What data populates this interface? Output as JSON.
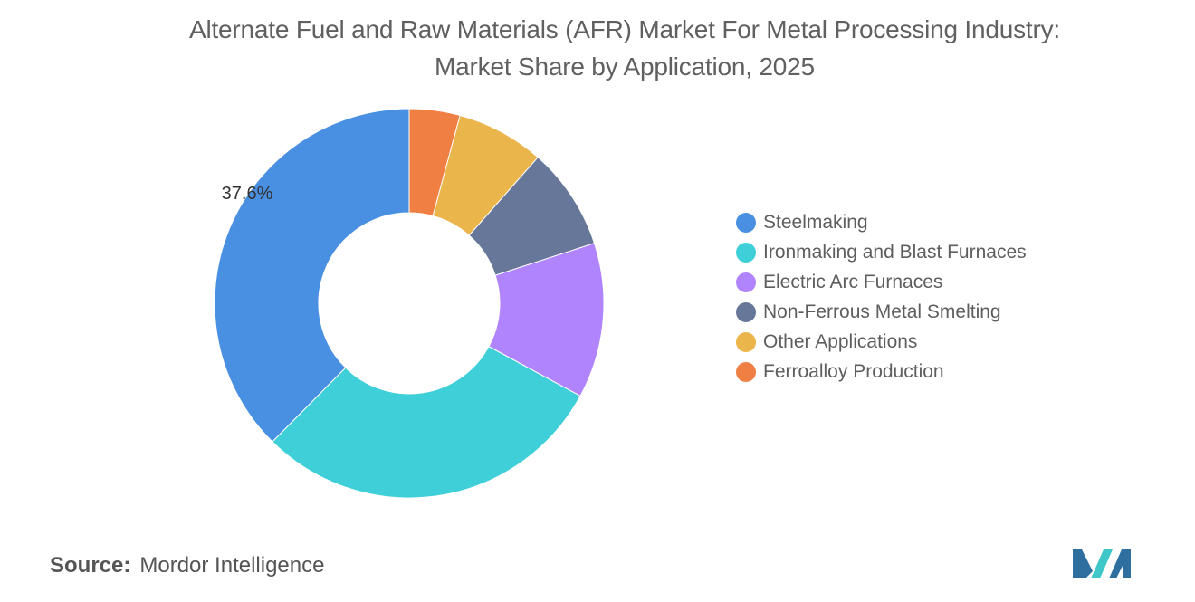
{
  "chart_data": {
    "type": "pie",
    "variant": "donut",
    "title_lines": [
      "Alternate Fuel and Raw Materials (AFR) Market For Metal Processing Industry:",
      "Market Share by Application, 2025"
    ],
    "categories": [
      "Steelmaking",
      "Ironmaking and Blast Furnaces",
      "Electric Arc Furnaces",
      "Non-Ferrous Metal Smelting",
      "Other Applications",
      "Ferroalloy Production"
    ],
    "values": [
      37.6,
      29.5,
      12.9,
      8.5,
      7.3,
      4.2
    ],
    "colors": [
      "#4a90e2",
      "#3ecfd9",
      "#b084fc",
      "#667799",
      "#eab54b",
      "#f07f43"
    ],
    "data_labels": [
      {
        "index": 0,
        "text": "37.6%"
      }
    ],
    "legend_position": "right",
    "start_angle": "top",
    "direction": "counter-clockwise"
  },
  "source": {
    "label": "Source:",
    "value": "Mordor Intelligence"
  },
  "logo_colors": [
    "#2f6f9f",
    "#3ec7c9"
  ]
}
